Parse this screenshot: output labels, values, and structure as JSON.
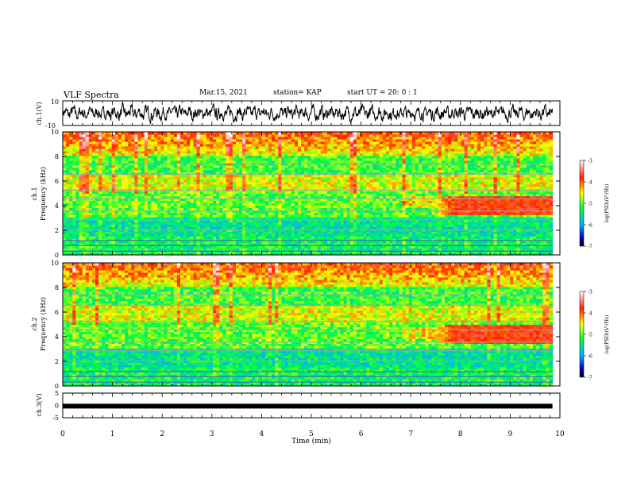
{
  "header": {
    "title": "VLF Spectra",
    "date": "Mar.15, 2021",
    "station": "station= KAP",
    "start": "start  UT =   20: 0  : 1"
  },
  "chart_data": [
    {
      "type": "line",
      "panel": "waveform-ch1",
      "ylabel": "ch.1(V)",
      "ylim": [
        -10,
        10
      ],
      "yticks": [
        "10",
        "-10"
      ],
      "xlim": [
        0,
        10
      ],
      "color": "#000000",
      "notes": "noisy trace oscillating around 0 V, amplitude ~ ±7 V"
    },
    {
      "type": "heatmap",
      "panel": "spectrogram-ch1",
      "ylabel": "ch.1 Frequency (kHz)",
      "ylim": [
        0,
        10
      ],
      "yticks": [
        "0",
        "2",
        "4",
        "6",
        "8",
        "10"
      ],
      "xlim": [
        0,
        9.85
      ],
      "colorbar": {
        "label": "log(PSD)(V²/Hz)",
        "ticks": [
          "-3",
          "-4",
          "-5",
          "-6",
          "-7"
        ],
        "range": [
          -7,
          -3
        ]
      },
      "features": [
        {
          "t_start": 7.5,
          "t_end": 9.85,
          "f_low": 3.3,
          "f_high": 4.8,
          "level": -3.8
        }
      ]
    },
    {
      "type": "heatmap",
      "panel": "spectrogram-ch2",
      "ylabel": "ch.2 Frequency (kHz)",
      "ylim": [
        0,
        10
      ],
      "yticks": [
        "0",
        "2",
        "4",
        "6",
        "8",
        "10"
      ],
      "xlim": [
        0,
        9.85
      ],
      "colorbar": {
        "label": "log(PSD)(V²/Hz)",
        "ticks": [
          "-3",
          "-4",
          "-5",
          "-6",
          "-7"
        ],
        "range": [
          -7,
          -3
        ]
      },
      "features": [
        {
          "t_start": 7.5,
          "t_end": 9.85,
          "f_low": 3.5,
          "f_high": 5.0,
          "level": -3.8
        }
      ]
    },
    {
      "type": "line",
      "panel": "waveform-ch3",
      "ylabel": "ch.3(V)",
      "ylim": [
        -5,
        5
      ],
      "yticks": [
        "5",
        "0",
        "-5"
      ],
      "xlim": [
        0,
        10
      ],
      "xlabel": "Time  (min)",
      "xticks": [
        "0",
        "1",
        "2",
        "3",
        "4",
        "5",
        "6",
        "7",
        "8",
        "9",
        "10"
      ],
      "values_note": "flat thick trace at about -0.3 V",
      "level": -0.3,
      "color": "#000000"
    }
  ]
}
